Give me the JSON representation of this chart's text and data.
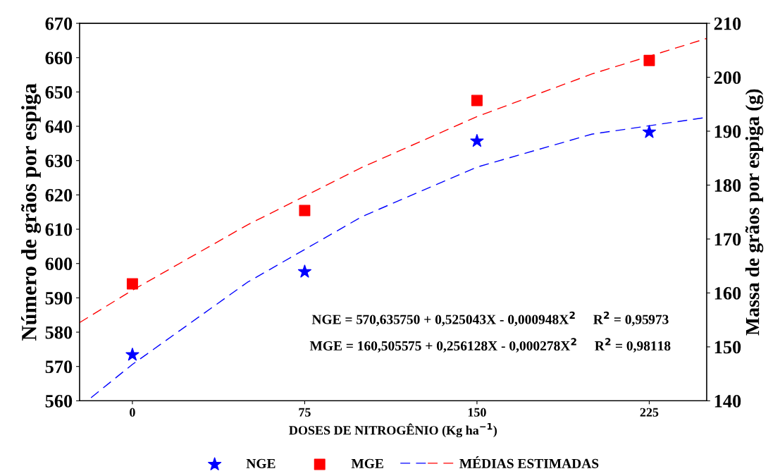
{
  "chart_data": {
    "type": "scatter",
    "xlabel": "DOSES DE NITROGÊNIO (Kg ha$^{−1}$)",
    "ylabel": "Número de grãos por espiga",
    "y2label": "Massa de grãos por espiga (g)",
    "xlim": [
      -23,
      250
    ],
    "xticks": [
      0,
      75,
      150,
      225
    ],
    "ylim": [
      560,
      670
    ],
    "yticks": [
      560,
      570,
      580,
      590,
      600,
      610,
      620,
      630,
      640,
      650,
      660,
      670
    ],
    "y2lim": [
      140,
      210
    ],
    "y2ticks": [
      140,
      150,
      160,
      170,
      180,
      190,
      200,
      210
    ],
    "series": [
      {
        "name": "NGE",
        "marker": "star",
        "color": "#0000ff",
        "x": [
          0,
          75,
          150,
          225
        ],
        "values": [
          573.4,
          597.6,
          635.7,
          638.3
        ]
      },
      {
        "name": "MGE",
        "marker": "square",
        "color": "#ff0000",
        "axis": "y2",
        "x": [
          0,
          75,
          150,
          225
        ],
        "values": [
          161.7,
          175.3,
          195.7,
          203.1
        ]
      },
      {
        "name": "MÉDIAS ESTIMADAS",
        "type": "line",
        "line_style": "dashed",
        "color": "#ff0000",
        "axis": "y2",
        "x": [
          -23,
          0,
          50,
          100,
          150,
          200,
          250
        ],
        "values": [
          154.5,
          160.5,
          172.6,
          183.3,
          192.7,
          200.6,
          207.2
        ]
      },
      {
        "type": "line",
        "line_style": "dashed",
        "color": "#0000ff",
        "x": [
          -18,
          0,
          50,
          100,
          150,
          200,
          250
        ],
        "values": [
          560.9,
          570.6,
          594.5,
          613.7,
          628.1,
          637.7,
          642.6
        ]
      }
    ],
    "annotations": [
      "NGE = 570,635750 + 0,525043X - 0,000948X$^{2}$     R$^{2}$ = 0,95973",
      "MGE = 160,505575 + 0,256128X - 0,000278X$^{2}$     R$^{2}$ = 0,98118"
    ],
    "grid": false,
    "legend": "bottom"
  }
}
